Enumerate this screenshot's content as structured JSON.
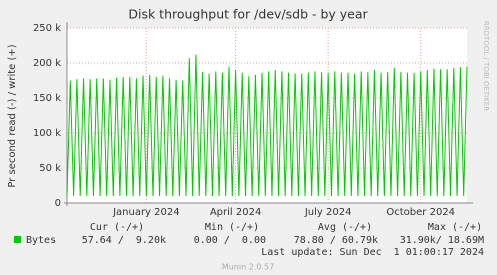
{
  "chart_data": {
    "type": "line",
    "title": "Disk throughput for /dev/sdb - by year",
    "ylabel": "Pr second read (-) / write (+)",
    "side_text": "RRDTOOL / TOBI OETIKER",
    "categories": [
      null,
      null,
      null,
      null,
      null,
      null,
      null,
      null,
      null,
      null,
      null,
      null,
      null,
      null,
      null,
      null,
      null,
      null,
      null,
      null,
      null,
      null,
      null,
      null,
      "January 2024",
      null,
      null,
      null,
      null,
      null,
      null,
      null,
      null,
      null,
      null,
      null,
      null,
      null,
      null,
      null,
      null,
      null,
      null,
      null,
      null,
      null,
      null,
      null,
      null,
      null,
      null,
      "April 2024",
      null,
      null,
      null,
      null,
      null,
      null,
      null,
      null,
      null,
      null,
      null,
      null,
      null,
      null,
      null,
      null,
      null,
      null,
      null,
      null,
      null,
      null,
      null,
      null,
      null,
      null,
      null,
      "July 2024",
      null,
      null,
      null,
      null,
      null,
      null,
      null,
      null,
      null,
      null,
      null,
      null,
      null,
      null,
      null,
      null,
      null,
      null,
      null,
      null,
      null,
      null,
      null,
      null,
      null,
      null,
      null,
      "October 2024",
      null,
      null,
      null,
      null,
      null,
      null,
      null,
      null,
      null,
      null,
      null,
      null,
      null,
      null
    ],
    "series": [
      {
        "name": "Bytes",
        "color": "#00cc00",
        "values": [
          10000,
          175000,
          10000,
          177000,
          10000,
          178000,
          10000,
          177000,
          10000,
          178000,
          10000,
          178000,
          10000,
          176000,
          10000,
          179000,
          10000,
          180000,
          10000,
          180000,
          10000,
          178000,
          10000,
          182000,
          10000,
          183000,
          10000,
          180000,
          10000,
          182000,
          10000,
          178000,
          10000,
          176000,
          10000,
          175000,
          10000,
          207000,
          10000,
          212000,
          10000,
          187000,
          10000,
          185000,
          10000,
          188000,
          10000,
          186000,
          10000,
          195000,
          10000,
          190000,
          10000,
          186000,
          10000,
          181000,
          10000,
          183000,
          10000,
          186000,
          10000,
          188000,
          10000,
          190000,
          10000,
          188000,
          10000,
          186000,
          10000,
          185000,
          10000,
          185000,
          10000,
          186000,
          10000,
          188000,
          10000,
          187000,
          10000,
          186000,
          10000,
          188000,
          10000,
          186000,
          10000,
          186000,
          10000,
          185000,
          10000,
          188000,
          10000,
          187000,
          10000,
          190000,
          10000,
          186000,
          10000,
          187000,
          10000,
          193000,
          10000,
          187000,
          10000,
          186000,
          10000,
          186000,
          10000,
          188000,
          10000,
          190000,
          10000,
          192000,
          10000,
          191000,
          10000,
          191000,
          10000,
          193000,
          10000,
          194000,
          10000,
          195000
        ]
      }
    ],
    "ylim": [
      0,
      250000
    ],
    "yticks": [
      0,
      {
        "value": 50000,
        "label": "50 k"
      },
      {
        "value": 100000,
        "label": "100 k"
      },
      {
        "value": 150000,
        "label": "150 k"
      },
      {
        "value": 200000,
        "label": "200 k"
      },
      {
        "value": 250000,
        "label": "250 k"
      }
    ],
    "grid": true,
    "legend_headers": [
      "Cur (-/+)",
      "Min (-/+)",
      "Avg (-/+)",
      "Max (-/+)"
    ],
    "legend_values": [
      "57.64 /  9.20k",
      "0.00 /  0.00",
      "78.80 / 60.79k",
      "31.90k/ 18.69M"
    ],
    "last_update": "Last update: Sun Dec  1 01:00:17 2024",
    "footer": "Munin 2.0.57"
  }
}
